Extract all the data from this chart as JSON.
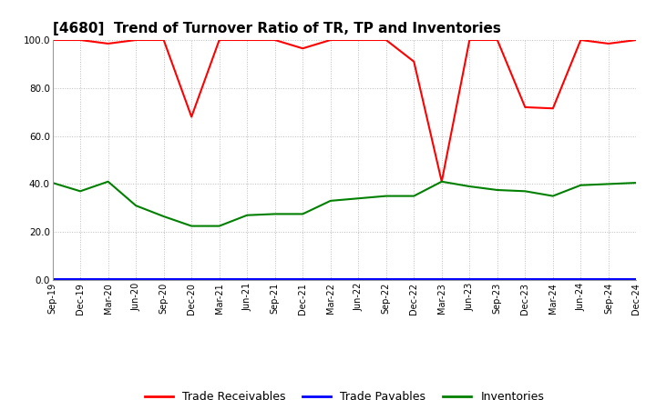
{
  "title": "[4680]  Trend of Turnover Ratio of TR, TP and Inventories",
  "x_labels": [
    "Sep-19",
    "Dec-19",
    "Mar-20",
    "Jun-20",
    "Sep-20",
    "Dec-20",
    "Mar-21",
    "Jun-21",
    "Sep-21",
    "Dec-21",
    "Mar-22",
    "Jun-22",
    "Sep-22",
    "Dec-22",
    "Mar-23",
    "Jun-23",
    "Sep-23",
    "Dec-23",
    "Mar-24",
    "Jun-24",
    "Sep-24",
    "Dec-24"
  ],
  "trade_receivables": [
    100.0,
    100.0,
    98.5,
    100.0,
    100.0,
    68.0,
    100.0,
    100.0,
    100.0,
    96.5,
    100.0,
    100.0,
    100.0,
    91.0,
    41.0,
    100.0,
    100.0,
    72.0,
    71.5,
    100.0,
    98.5,
    100.0
  ],
  "trade_payables": [
    0.5,
    0.5,
    0.5,
    0.5,
    0.5,
    0.5,
    0.5,
    0.5,
    0.5,
    0.5,
    0.5,
    0.5,
    0.5,
    0.5,
    0.5,
    0.5,
    0.5,
    0.5,
    0.5,
    0.5,
    0.5,
    0.5
  ],
  "inventories": [
    40.5,
    37.0,
    41.0,
    31.0,
    26.5,
    22.5,
    22.5,
    27.0,
    27.5,
    27.5,
    33.0,
    34.0,
    35.0,
    35.0,
    41.0,
    39.0,
    37.5,
    37.0,
    35.0,
    39.5,
    40.0,
    40.5
  ],
  "tr_color": "#ff0000",
  "tp_color": "#0000ff",
  "inv_color": "#008000",
  "ylim": [
    0,
    100
  ],
  "yticks": [
    0.0,
    20.0,
    40.0,
    60.0,
    80.0,
    100.0
  ],
  "bg_color": "#ffffff",
  "grid_color": "#bbbbbb",
  "title_fontsize": 11,
  "tick_fontsize": 7,
  "legend_fontsize": 9,
  "linewidth": 1.5
}
